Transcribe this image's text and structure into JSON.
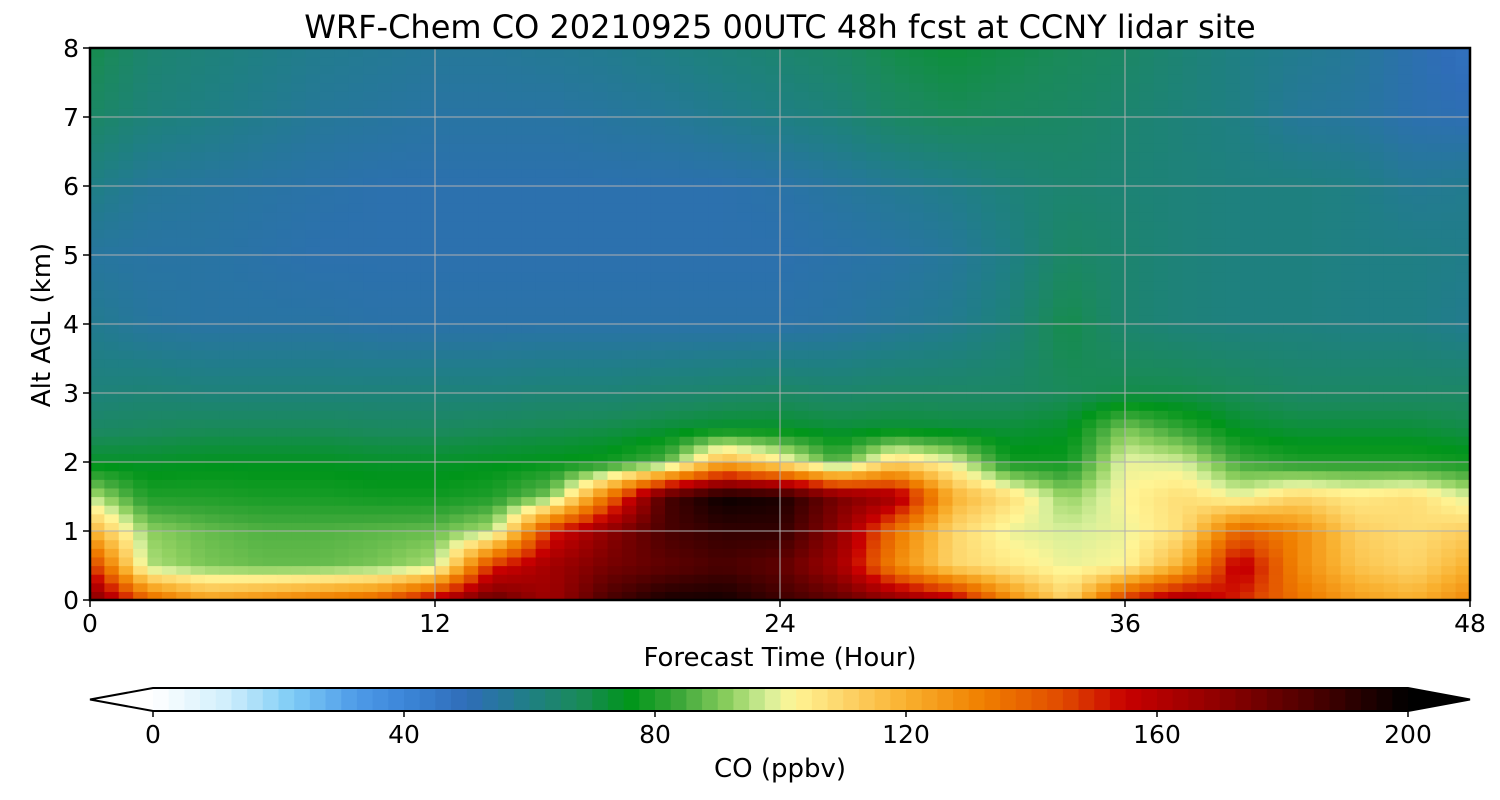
{
  "chart_data": {
    "type": "heatmap",
    "title": "WRF-Chem CO  20210925 00UTC 48h fcst at CCNY lidar site",
    "xlabel": "Forecast Time (Hour)",
    "ylabel": "Alt AGL (km)",
    "xlim": [
      0,
      48
    ],
    "ylim": [
      0,
      8
    ],
    "x_ticks": [
      "0",
      "12",
      "24",
      "36",
      "48"
    ],
    "y_ticks": [
      "0",
      "1",
      "2",
      "3",
      "4",
      "5",
      "6",
      "7",
      "8"
    ],
    "grid": true,
    "z_field": {
      "description_units": "ppbv",
      "x": [
        0,
        2,
        4,
        6,
        8,
        10,
        12,
        14,
        16,
        18,
        20,
        22,
        24,
        26,
        28,
        30,
        32,
        34,
        36,
        38,
        40,
        42,
        44,
        46,
        48
      ],
      "y": [
        0,
        0.5,
        1,
        1.5,
        2,
        2.5,
        3,
        4,
        5,
        6,
        7,
        8
      ],
      "values": [
        [
          175,
          140,
          125,
          130,
          135,
          140,
          160,
          180,
          165,
          185,
          195,
          196,
          188,
          180,
          170,
          160,
          130,
          110,
          150,
          165,
          150,
          135,
          125,
          120,
          130
        ],
        [
          150,
          95,
          90,
          88,
          88,
          90,
          95,
          150,
          165,
          175,
          180,
          185,
          180,
          165,
          130,
          110,
          105,
          100,
          102,
          120,
          160,
          130,
          115,
          110,
          120
        ],
        [
          120,
          92,
          88,
          86,
          86,
          87,
          88,
          95,
          150,
          170,
          185,
          190,
          190,
          170,
          135,
          110,
          100,
          98,
          100,
          108,
          140,
          130,
          112,
          108,
          112
        ],
        [
          96,
          80,
          80,
          79,
          79,
          78,
          78,
          80,
          90,
          135,
          185,
          198,
          195,
          175,
          165,
          120,
          108,
          92,
          102,
          108,
          100,
          110,
          105,
          108,
          98
        ],
        [
          74,
          74,
          75,
          75,
          75,
          74,
          74,
          75,
          76,
          78,
          86,
          120,
          105,
          85,
          110,
          100,
          78,
          78,
          100,
          98,
          84,
          80,
          80,
          80,
          78
        ],
        [
          66,
          67,
          68,
          68,
          68,
          67,
          67,
          68,
          69,
          70,
          72,
          74,
          74,
          72,
          73,
          72,
          72,
          74,
          90,
          82,
          74,
          72,
          72,
          72,
          70
        ],
        [
          62,
          63,
          62,
          62,
          62,
          62,
          62,
          62,
          63,
          63,
          64,
          65,
          66,
          65,
          66,
          66,
          66,
          68,
          70,
          70,
          68,
          66,
          66,
          66,
          66
        ],
        [
          58,
          55,
          54,
          54,
          54,
          53,
          53,
          53,
          53,
          53,
          53,
          53,
          53,
          54,
          56,
          58,
          62,
          70,
          64,
          62,
          61,
          61,
          60,
          60,
          58
        ],
        [
          55,
          54,
          54,
          53,
          52,
          52,
          52,
          52,
          52,
          52,
          52,
          52,
          52,
          53,
          54,
          56,
          60,
          66,
          64,
          62,
          61,
          61,
          60,
          60,
          59
        ],
        [
          60,
          56,
          55,
          54,
          53,
          52,
          52,
          52,
          52,
          52,
          52,
          52,
          53,
          55,
          57,
          59,
          62,
          64,
          63,
          62,
          61,
          61,
          60,
          57,
          58
        ],
        [
          66,
          62,
          60,
          58,
          56,
          55,
          54,
          54,
          54,
          55,
          56,
          58,
          60,
          62,
          66,
          68,
          67,
          66,
          64,
          62,
          60,
          56,
          55,
          52,
          51
        ],
        [
          70,
          64,
          62,
          60,
          58,
          57,
          56,
          56,
          57,
          58,
          60,
          62,
          64,
          66,
          70,
          72,
          70,
          68,
          66,
          63,
          60,
          58,
          56,
          52,
          48
        ]
      ]
    },
    "colorbar": {
      "label": "CO  (ppbv)",
      "min": 0,
      "max": 200,
      "ticks": [
        "0",
        "40",
        "80",
        "120",
        "160",
        "200"
      ],
      "extend": "both",
      "colors": [
        {
          "value": 0,
          "color": "#ffffff"
        },
        {
          "value": 12,
          "color": "#cfeefc"
        },
        {
          "value": 22,
          "color": "#7fcdf6"
        },
        {
          "value": 32,
          "color": "#4f9ce8"
        },
        {
          "value": 40,
          "color": "#3c86d8"
        },
        {
          "value": 50,
          "color": "#2f6db8"
        },
        {
          "value": 60,
          "color": "#1f7f84"
        },
        {
          "value": 68,
          "color": "#1a8a5a"
        },
        {
          "value": 76,
          "color": "#00951a"
        },
        {
          "value": 84,
          "color": "#3ea83a"
        },
        {
          "value": 92,
          "color": "#8fd060"
        },
        {
          "value": 98,
          "color": "#d6ef9a"
        },
        {
          "value": 102,
          "color": "#fff596"
        },
        {
          "value": 110,
          "color": "#fdd56a"
        },
        {
          "value": 120,
          "color": "#f9b02e"
        },
        {
          "value": 132,
          "color": "#f08000"
        },
        {
          "value": 145,
          "color": "#e04a00"
        },
        {
          "value": 155,
          "color": "#c80000"
        },
        {
          "value": 170,
          "color": "#8e0000"
        },
        {
          "value": 185,
          "color": "#4a0000"
        },
        {
          "value": 200,
          "color": "#000000"
        }
      ]
    }
  }
}
